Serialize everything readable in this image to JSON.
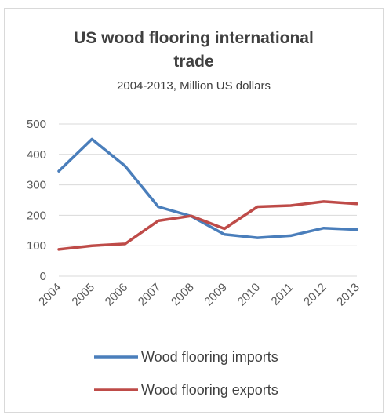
{
  "chart_data": {
    "type": "line",
    "title_line1": "US wood flooring international",
    "title_line2": "trade",
    "subtitle": "2004-2013, Million US dollars",
    "categories": [
      "2004",
      "2005",
      "2006",
      "2007",
      "2008",
      "2009",
      "2010",
      "2011",
      "2012",
      "2013"
    ],
    "ylim": [
      0,
      500
    ],
    "yticks": [
      0,
      100,
      200,
      300,
      400,
      500
    ],
    "grid": true,
    "legend_position": "bottom",
    "series": [
      {
        "name": "Wood flooring imports",
        "color": "#4a7ebb",
        "values": [
          345,
          450,
          362,
          228,
          197,
          137,
          126,
          133,
          158,
          153
        ]
      },
      {
        "name": "Wood flooring exports",
        "color": "#be4b48",
        "values": [
          88,
          100,
          106,
          182,
          198,
          156,
          228,
          232,
          245,
          238
        ]
      }
    ]
  }
}
